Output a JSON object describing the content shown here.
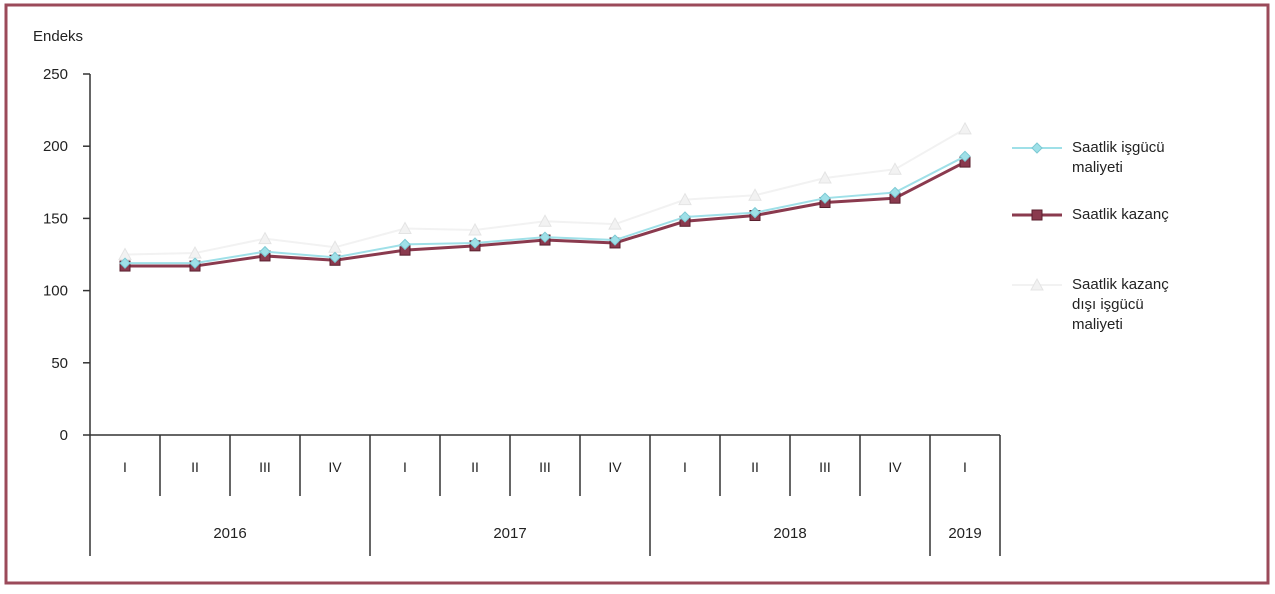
{
  "chart_data": {
    "type": "line",
    "ylabel": "Endeks",
    "ylim": [
      0,
      250
    ],
    "yticks": [
      0,
      50,
      100,
      150,
      200,
      250
    ],
    "categories": [
      "I",
      "II",
      "III",
      "IV",
      "I",
      "II",
      "III",
      "IV",
      "I",
      "II",
      "III",
      "IV",
      "I"
    ],
    "year_groups": [
      {
        "label": "2016",
        "span": 4
      },
      {
        "label": "2017",
        "span": 4
      },
      {
        "label": "2018",
        "span": 4
      },
      {
        "label": "2019",
        "span": 1
      }
    ],
    "series": [
      {
        "name": "Saatlik işgücü maliyeti",
        "color": "#9fe0e8",
        "marker": "diamond",
        "values": [
          119,
          119,
          127,
          123,
          132,
          133,
          137,
          135,
          151,
          154,
          164,
          168,
          193
        ]
      },
      {
        "name": "Saatlik kazanç",
        "color": "#8a3a4e",
        "marker": "square",
        "values": [
          117,
          117,
          124,
          121,
          128,
          131,
          135,
          133,
          148,
          152,
          161,
          164,
          189
        ]
      },
      {
        "name": "Saatlik kazanç dışı işgücü maliyeti",
        "color": "#f2f2f2",
        "marker": "triangle",
        "values": [
          125,
          126,
          136,
          130,
          143,
          142,
          148,
          146,
          163,
          166,
          178,
          184,
          212
        ]
      }
    ],
    "legend_position": "right",
    "grid": false
  }
}
